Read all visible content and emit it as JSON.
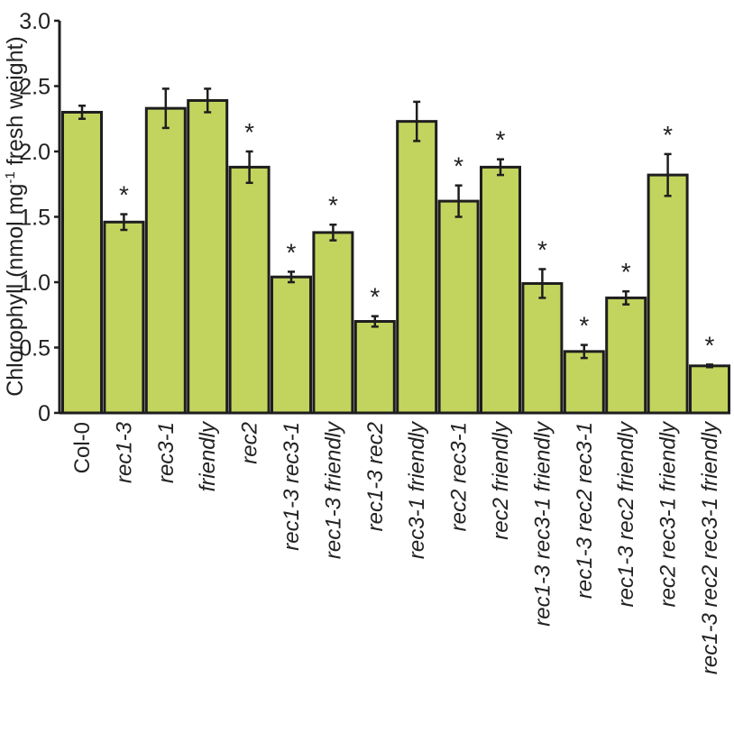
{
  "chart_data": {
    "type": "bar",
    "title": "",
    "xlabel": "",
    "ylabel": "Chlorophyll (nmol mg-1 fresh weight)",
    "ylabel_parts": {
      "main": "Chlorophyll (nmol mg",
      "sup": "-1",
      "rest": " fresh weight)"
    },
    "ylim": [
      0,
      3.0
    ],
    "yticks": [
      "0",
      "0.5",
      "1.0",
      "1.5",
      "2.0",
      "2.5",
      "3.0"
    ],
    "ytick_values": [
      0,
      0.5,
      1.0,
      1.5,
      2.0,
      2.5,
      3.0
    ],
    "grid": false,
    "categories": [
      "Col-0",
      "rec1-3",
      "rec3-1",
      "friendly",
      "rec2",
      "rec1-3 rec3-1",
      "rec1-3 friendly",
      "rec1-3 rec2",
      "rec3-1 friendly",
      "rec2 rec3-1",
      "rec2 friendly",
      "rec1-3 rec3-1 friendly",
      "rec1-3 rec2 rec3-1",
      "rec1-3 rec2 friendly",
      "rec2 rec3-1 friendly",
      "rec1-3 rec2 rec3-1 friendly"
    ],
    "italic": [
      false,
      true,
      true,
      true,
      true,
      true,
      true,
      true,
      true,
      true,
      true,
      true,
      true,
      true,
      true,
      true
    ],
    "values": [
      2.3,
      1.46,
      2.33,
      2.39,
      1.88,
      1.04,
      1.38,
      0.7,
      2.23,
      1.62,
      1.88,
      0.99,
      0.47,
      0.88,
      1.82,
      0.36
    ],
    "errors": [
      0.05,
      0.06,
      0.15,
      0.09,
      0.12,
      0.04,
      0.06,
      0.04,
      0.15,
      0.12,
      0.06,
      0.11,
      0.05,
      0.05,
      0.16,
      0.01
    ],
    "significant": [
      false,
      true,
      false,
      false,
      true,
      true,
      true,
      true,
      false,
      true,
      true,
      true,
      true,
      true,
      true,
      true
    ],
    "significance_marker": "*",
    "colors": {
      "bar": "#c3d45e",
      "stroke": "#1e1e1e",
      "text": "#222222"
    }
  }
}
